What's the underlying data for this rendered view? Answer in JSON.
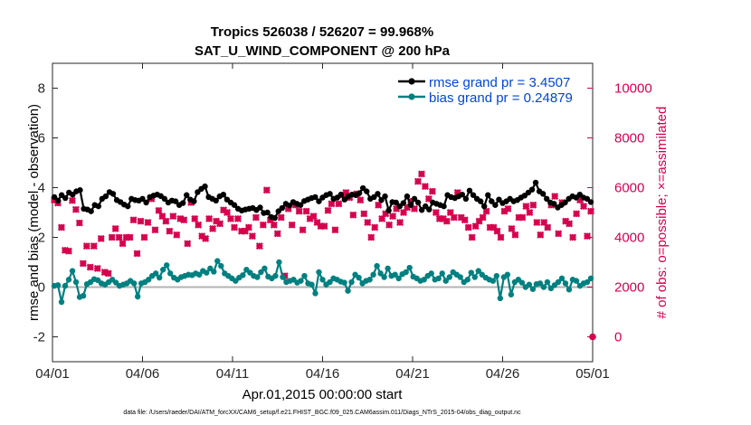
{
  "chart_data": {
    "type": "line",
    "title": "Tropics 526038 / 526207 = 99.968%",
    "subtitle": "SAT_U_WIND_COMPONENT @ 200 hPa",
    "xlabel": "Apr.01,2015 00:00:00 start",
    "ylabel": "rmse and bias (model - observation)",
    "ylabel_right": "# of obs: o=possible; ×=assimilated",
    "footnote": "data file: /Users/raeder/DAI/ATM_forcXX/CAM6_setup/f.e21.FHIST_BGC.f09_025.CAM6assim.011/Diags_NTrS_2015-04/obs_diag_output.nc",
    "x_tick_labels": [
      "04/01",
      "04/06",
      "04/11",
      "04/16",
      "04/21",
      "04/26",
      "05/01"
    ],
    "x_tick_days": [
      0,
      5,
      10,
      15,
      20,
      25,
      30
    ],
    "xlim": [
      0,
      30
    ],
    "y_ticks": [
      -2,
      0,
      2,
      4,
      6,
      8
    ],
    "ylim": [
      -3,
      9
    ],
    "y2_ticks": [
      0,
      2000,
      4000,
      6000,
      8000,
      10000
    ],
    "y2lim": [
      -1000,
      11000
    ],
    "grid": false,
    "legend_position": "top-right",
    "series": [
      {
        "name": "rmse grand pr = 3.4507",
        "color": "#000000",
        "axis": "left",
        "values": [
          3.62,
          3.48,
          3.7,
          3.58,
          3.8,
          3.72,
          3.85,
          3.9,
          3.15,
          3.12,
          3.05,
          3.3,
          3.25,
          3.55,
          3.65,
          3.82,
          3.75,
          3.5,
          3.42,
          3.32,
          3.25,
          3.55,
          3.5,
          3.48,
          3.55,
          3.4,
          3.62,
          3.68,
          3.72,
          3.66,
          3.55,
          3.4,
          3.48,
          3.45,
          3.3,
          3.38,
          3.7,
          3.52,
          3.45,
          3.82,
          3.95,
          4.05,
          3.62,
          3.55,
          3.48,
          3.65,
          3.72,
          3.52,
          3.4,
          3.3,
          3.15,
          3.08,
          3.12,
          3.15,
          3.18,
          3.1,
          3.2,
          2.98,
          3.0,
          2.82,
          2.78,
          3.05,
          3.18,
          3.35,
          3.28,
          3.42,
          3.35,
          3.3,
          3.46,
          3.52,
          3.58,
          3.62,
          3.45,
          3.6,
          3.7,
          3.75,
          3.55,
          3.6,
          3.72,
          3.52,
          3.65,
          3.72,
          3.7,
          3.78,
          3.98,
          3.85,
          3.55,
          3.62,
          3.75,
          3.5,
          3.65,
          3.08,
          3.42,
          3.4,
          3.25,
          3.38,
          3.65,
          3.3,
          3.55,
          3.4,
          3.1,
          3.25,
          3.12,
          3.4,
          3.35,
          3.3,
          3.25,
          3.7,
          3.62,
          3.58,
          3.65,
          3.72,
          3.55,
          3.88,
          3.7,
          3.55,
          3.45,
          3.25,
          3.7,
          3.45,
          3.3,
          3.52,
          3.38,
          3.45,
          3.55,
          3.45,
          3.5,
          3.6,
          3.68,
          3.8,
          3.92,
          4.2,
          3.85,
          3.75,
          3.55,
          3.4,
          3.35,
          3.2,
          3.3,
          3.4,
          3.55,
          3.65,
          3.6,
          3.72,
          3.6,
          3.55,
          3.42
        ]
      },
      {
        "name": "bias grand pr = 0.24879",
        "color": "#008080",
        "axis": "left",
        "values": [
          0.05,
          0.08,
          -0.6,
          0.05,
          0.3,
          0.65,
          0.2,
          -0.4,
          -0.35,
          0.12,
          0.2,
          0.32,
          0.28,
          0.15,
          0.1,
          0.2,
          0.3,
          0.18,
          0.05,
          0.1,
          0.15,
          0.25,
          0.15,
          -0.38,
          0.15,
          0.2,
          0.3,
          0.45,
          0.55,
          0.38,
          0.7,
          0.88,
          0.55,
          0.38,
          0.3,
          0.4,
          0.45,
          0.5,
          0.48,
          0.55,
          0.5,
          0.65,
          0.58,
          0.75,
          0.62,
          1.05,
          0.85,
          0.55,
          0.45,
          0.35,
          0.25,
          0.38,
          0.48,
          0.7,
          0.58,
          0.45,
          0.4,
          0.6,
          0.75,
          0.42,
          0.35,
          0.45,
          1.0,
          0.4,
          0.2,
          0.25,
          0.3,
          0.18,
          0.25,
          0.45,
          0.15,
          0.1,
          -0.25,
          0.6,
          0.3,
          0.1,
          0.2,
          0.35,
          0.3,
          0.22,
          0.18,
          -0.15,
          0.2,
          0.5,
          0.38,
          0.15,
          0.25,
          0.3,
          0.5,
          0.85,
          0.55,
          0.4,
          0.75,
          0.45,
          0.5,
          0.35,
          0.52,
          0.6,
          0.78,
          0.42,
          0.35,
          0.25,
          0.3,
          0.45,
          0.55,
          0.3,
          0.35,
          0.55,
          0.25,
          0.4,
          0.6,
          0.5,
          0.4,
          0.2,
          0.3,
          0.58,
          0.4,
          0.65,
          0.5,
          0.38,
          0.3,
          0.25,
          0.45,
          -0.45,
          0.4,
          0.5,
          -0.3,
          0.2,
          0.3,
          0.18,
          0.0,
          0.1,
          -0.08,
          0.12,
          0.15,
          0.0,
          0.2,
          -0.05,
          0.08,
          0.2,
          0.35,
          0.15,
          -0.1,
          0.3,
          0.25,
          0.05,
          0.15,
          0.2,
          0.35
        ]
      },
      {
        "name": "# of obs assimilated",
        "color": "#d6004d",
        "axis": "right",
        "marker": "x",
        "values": [
          5500,
          5380,
          4400,
          3480,
          3450,
          5480,
          5120,
          4580,
          2950,
          3650,
          2800,
          3650,
          2750,
          3950,
          2600,
          2550,
          4000,
          4350,
          4000,
          3750,
          4000,
          4000,
          4700,
          3350,
          4650,
          4000,
          4600,
          5550,
          4300,
          5080,
          4850,
          4650,
          4250,
          4850,
          4100,
          4750,
          4700,
          3750,
          5400,
          4750,
          4500,
          4050,
          3950,
          4750,
          4350,
          4650,
          4550,
          5100,
          5000,
          4750,
          4400,
          4750,
          4250,
          4250,
          4400,
          4050,
          4800,
          3650,
          4500,
          5900,
          4700,
          4500,
          4150,
          4800,
          2450,
          5150,
          4500,
          5300,
          5050,
          4300,
          5050,
          4750,
          4850,
          4600,
          4450,
          4450,
          5080,
          5350,
          4300,
          5350,
          5700,
          5800,
          5600,
          4900,
          5750,
          5500,
          4950,
          4600,
          4000,
          4400,
          5300,
          4750,
          4950,
          4500,
          4850,
          5150,
          4600,
          5000,
          5200,
          5450,
          5150,
          6250,
          6550,
          6050,
          5550,
          5850,
          5000,
          4750,
          4750,
          4650,
          5000,
          4800,
          5800,
          4800,
          4700,
          4400,
          4000,
          4450,
          4650,
          4800,
          5050,
          4400,
          4400,
          4250,
          4000,
          5050,
          5150,
          4350,
          4100,
          4800,
          4800,
          5250,
          5000,
          5300,
          4600,
          4100,
          4600,
          4400,
          5300,
          5650,
          4150,
          5400,
          4650,
          4550,
          4000,
          4950,
          5500,
          5250,
          4050,
          5050
        ]
      },
      {
        "name": "# of obs possible",
        "color": "#d6004d",
        "axis": "right",
        "marker": "o",
        "values": [
          0
        ]
      }
    ]
  }
}
